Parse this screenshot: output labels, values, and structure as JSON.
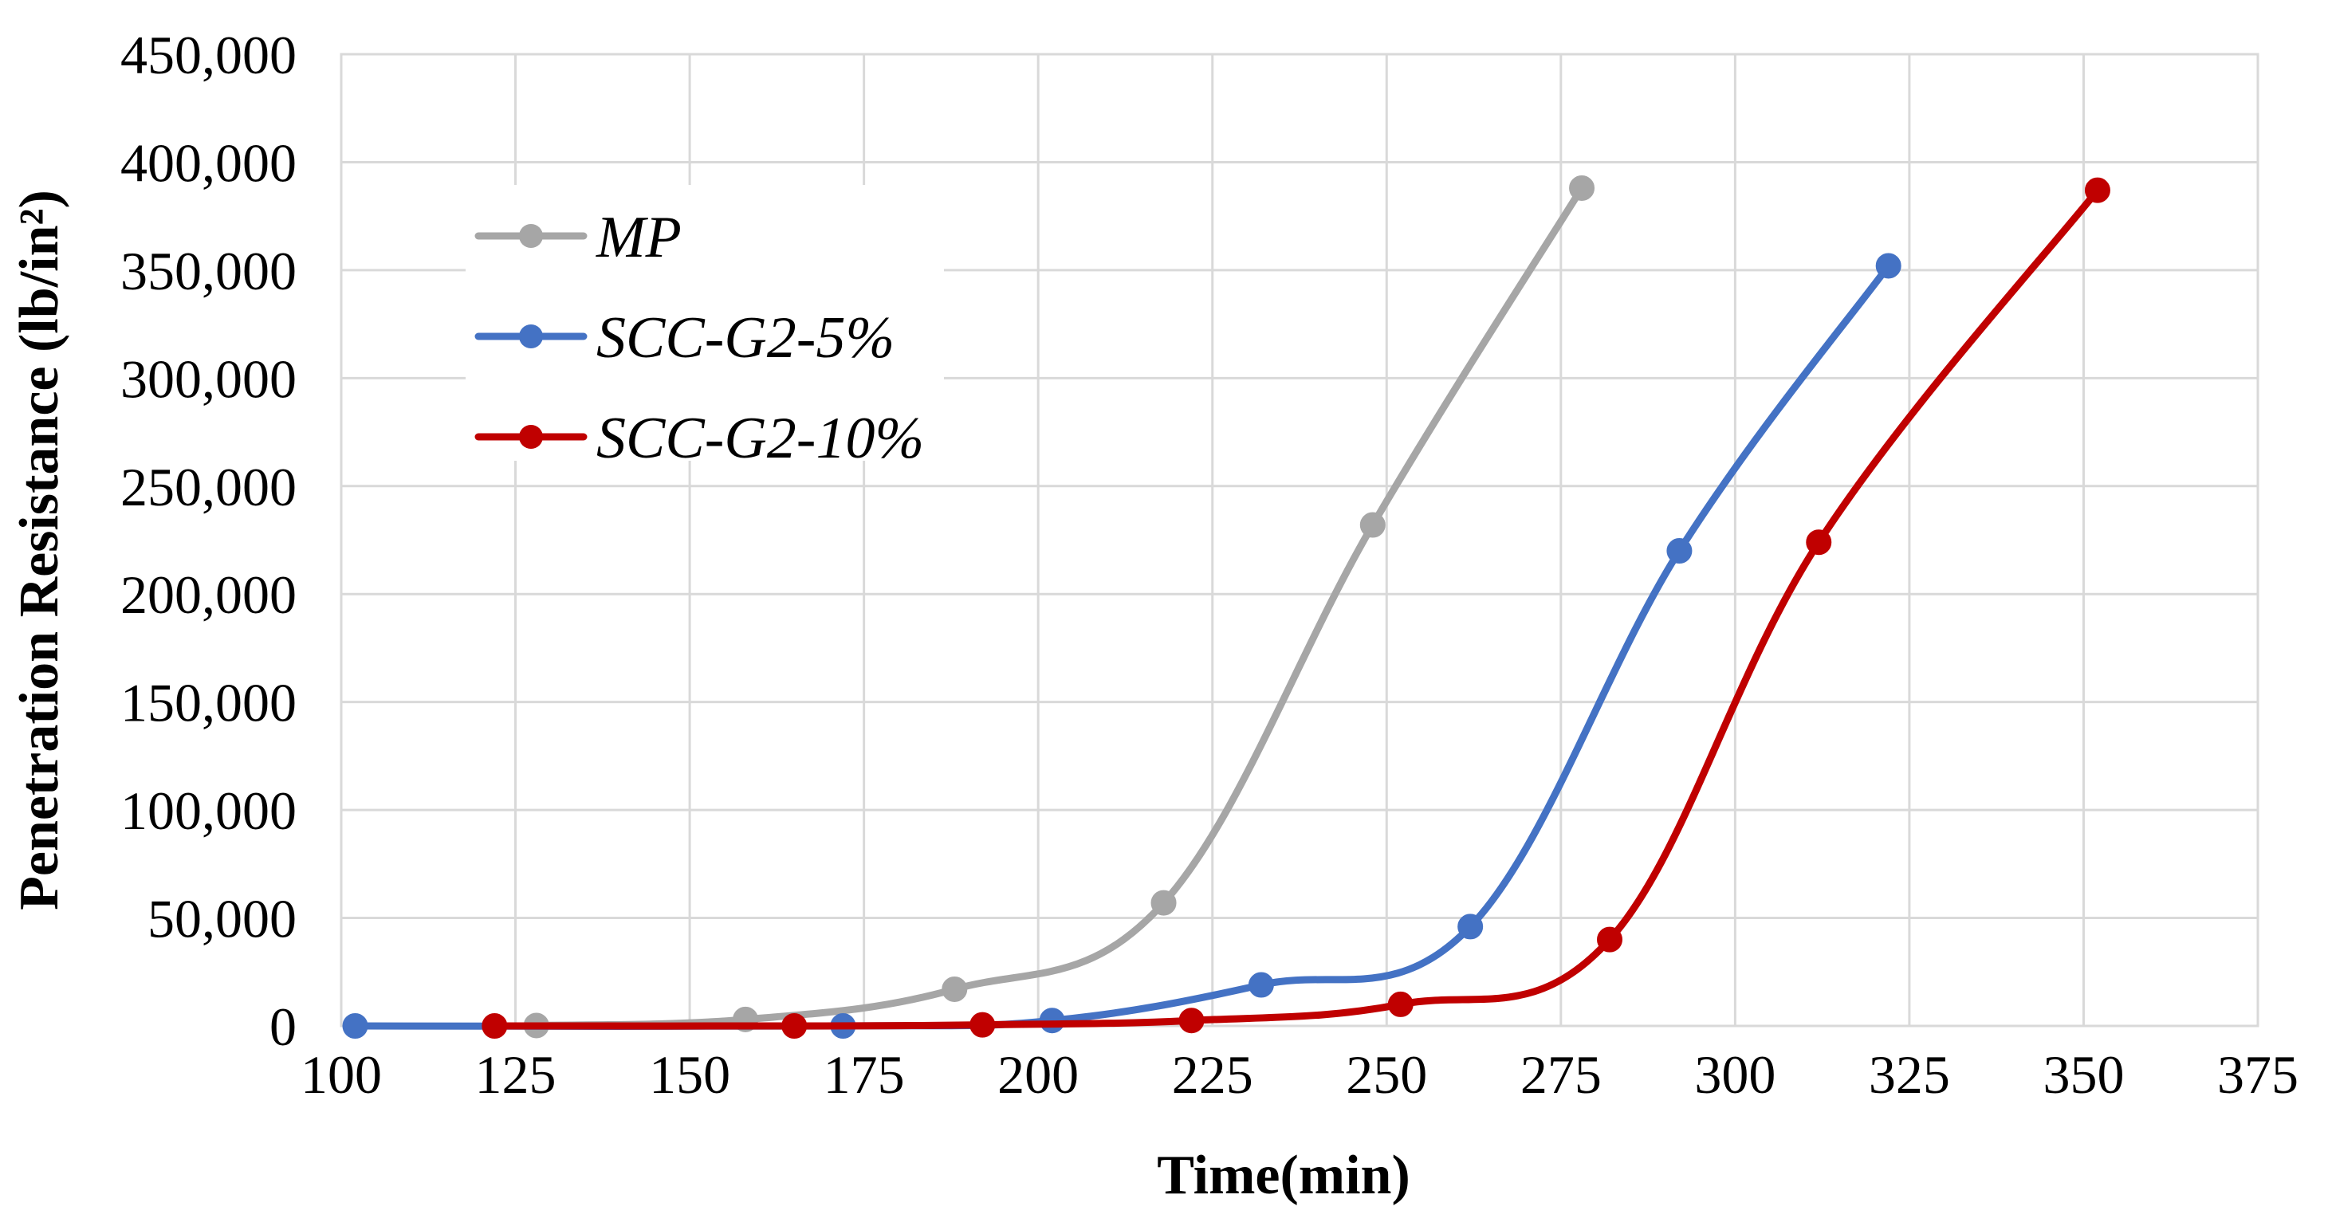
{
  "chart_data": {
    "type": "line",
    "title": "",
    "xlabel": "Time(min)",
    "ylabel": "Penetration Resistance (lb/in²)",
    "xlim": [
      100,
      375
    ],
    "ylim": [
      0,
      450000
    ],
    "x_ticks": [
      "100",
      "125",
      "150",
      "175",
      "200",
      "225",
      "250",
      "275",
      "300",
      "325",
      "350",
      "375"
    ],
    "y_ticks": [
      "0",
      "50,000",
      "100,000",
      "150,000",
      "200,000",
      "250,000",
      "300,000",
      "350,000",
      "400,000",
      "450,000"
    ],
    "grid": true,
    "legend_position": "top-left",
    "series": [
      {
        "name": "MP",
        "color": "#A6A6A6",
        "x": [
          128,
          158,
          188,
          218,
          248,
          278
        ],
        "y": [
          200,
          3000,
          17000,
          57000,
          232000,
          388000
        ]
      },
      {
        "name": "SCC-G2-5%",
        "color": "#4472C4",
        "x": [
          102,
          172,
          202,
          232,
          262,
          292,
          322
        ],
        "y": [
          0,
          0,
          2500,
          19000,
          46000,
          220000,
          352000
        ]
      },
      {
        "name": "SCC-G2-10%",
        "color": "#C00000",
        "x": [
          122,
          165,
          192,
          222,
          252,
          282,
          312,
          352
        ],
        "y": [
          0,
          0,
          500,
          2500,
          10000,
          40000,
          224000,
          387000
        ]
      }
    ]
  }
}
